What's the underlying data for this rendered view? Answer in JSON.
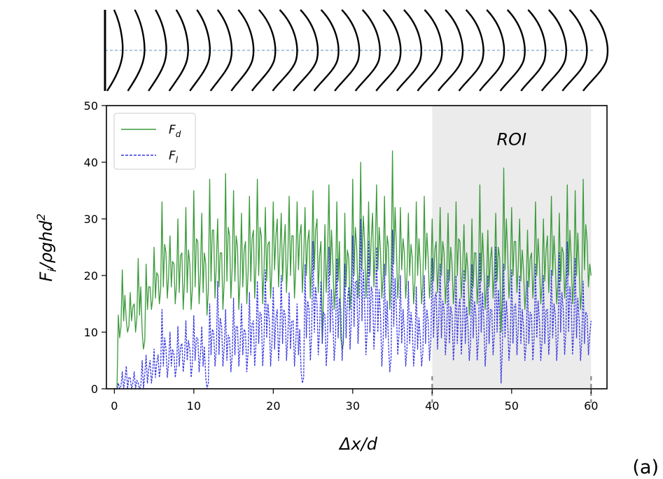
{
  "panel_label": "(a)",
  "top_strip": {
    "profile_count": 24,
    "reference_line_color": "#5b8fc7"
  },
  "chart_data": {
    "type": "line",
    "xlabel_parts": {
      "base": "Δx/d"
    },
    "ylabel_parts": {
      "base": "F",
      "sub": "i",
      "rest": "/ρghd",
      "sup": "2"
    },
    "xlim": [
      -1,
      62
    ],
    "ylim": [
      0,
      50
    ],
    "xticks": [
      0,
      10,
      20,
      30,
      40,
      50,
      60
    ],
    "yticks": [
      0,
      10,
      20,
      30,
      40,
      50
    ],
    "grid": false,
    "legend_placement": "top-left",
    "region": {
      "label": "ROI",
      "x_start": 40,
      "x_end": 60,
      "color": "#ebebeb"
    },
    "series": [
      {
        "name": "F",
        "name_sub": "d",
        "color": "#3a9a3a",
        "style": "solid",
        "x": [
          0,
          0.5,
          1,
          1.5,
          2,
          2.5,
          3,
          3.5,
          4,
          4.5,
          5,
          5.5,
          6,
          6.5,
          7,
          7.5,
          8,
          8.5,
          9,
          9.5,
          10,
          10.5,
          11,
          11.5,
          12,
          12.5,
          13,
          13.5,
          14,
          14.5,
          15,
          15.5,
          16,
          16.5,
          17,
          17.5,
          18,
          18.5,
          19,
          19.5,
          20,
          20.5,
          21,
          21.5,
          22,
          22.5,
          23,
          23.5,
          24,
          24.5,
          25,
          25.5,
          26,
          26.5,
          27,
          27.5,
          28,
          28.5,
          29,
          29.5,
          30,
          30.5,
          31,
          31.5,
          32,
          32.5,
          33,
          33.5,
          34,
          34.5,
          35,
          35.5,
          36,
          36.5,
          37,
          37.5,
          38,
          38.5,
          39,
          39.5,
          40,
          40.5,
          41,
          41.5,
          42,
          42.5,
          43,
          43.5,
          44,
          44.5,
          45,
          45.5,
          46,
          46.5,
          47,
          47.5,
          48,
          48.5,
          49,
          49.5,
          50,
          50.5,
          51,
          51.5,
          52,
          52.5,
          53,
          53.5,
          54,
          54.5,
          55,
          55.5,
          56,
          56.5,
          57,
          57.5,
          58,
          58.5,
          59,
          59.5,
          60
        ],
        "values": [
          0,
          13,
          21,
          12,
          17,
          15,
          23,
          10,
          22,
          18,
          25,
          20,
          33,
          24,
          27,
          22,
          30,
          24,
          32,
          22,
          35,
          26,
          31,
          22,
          37,
          28,
          30,
          24,
          38,
          27,
          35,
          25,
          31,
          26,
          34,
          28,
          37,
          27,
          32,
          26,
          33,
          30,
          31,
          29,
          34,
          27,
          33,
          29,
          32,
          28,
          35,
          30,
          26,
          29,
          36,
          22,
          33,
          9,
          31,
          23,
          37,
          25,
          40,
          26,
          33,
          31,
          36,
          24,
          34,
          25,
          42,
          25,
          32,
          24,
          31,
          23,
          33,
          22,
          34,
          23,
          30,
          26,
          32,
          24,
          31,
          22,
          33,
          26,
          29,
          21,
          30,
          24,
          36,
          22,
          28,
          25,
          31,
          23,
          39,
          24,
          32,
          26,
          30,
          21,
          28,
          24,
          33,
          22,
          30,
          27,
          34,
          22,
          31,
          24,
          36,
          23,
          35,
          21,
          37,
          26,
          20
        ],
        "min_values": [
          0,
          9,
          12,
          10,
          12,
          10,
          13,
          7,
          14,
          14,
          16,
          15,
          18,
          16,
          18,
          15,
          17,
          14,
          17,
          14,
          18,
          15,
          17,
          13,
          19,
          16,
          18,
          14,
          19,
          16,
          19,
          14,
          18,
          15,
          19,
          16,
          20,
          15,
          19,
          16,
          21,
          18,
          19,
          17,
          20,
          16,
          21,
          17,
          20,
          16,
          21,
          17,
          8,
          17,
          20,
          14,
          19,
          7,
          18,
          14,
          20,
          16,
          21,
          16,
          20,
          18,
          21,
          16,
          20,
          14,
          22,
          16,
          21,
          16,
          20,
          15,
          20,
          15,
          21,
          16,
          19,
          17,
          20,
          15,
          19,
          15,
          20,
          16,
          19,
          13,
          18,
          15,
          19,
          14,
          18,
          16,
          19,
          10,
          21,
          16,
          20,
          17,
          19,
          14,
          18,
          16,
          20,
          15,
          19,
          17,
          20,
          15,
          19,
          16,
          20,
          15,
          20,
          14,
          21,
          18,
          20
        ]
      },
      {
        "name": "F",
        "name_sub": "l",
        "color": "#3535e0",
        "style": "dashed",
        "x": [
          0,
          0.5,
          1,
          1.5,
          2,
          2.5,
          3,
          3.5,
          4,
          4.5,
          5,
          5.5,
          6,
          6.5,
          7,
          7.5,
          8,
          8.5,
          9,
          9.5,
          10,
          10.5,
          11,
          11.5,
          12,
          12.5,
          13,
          13.5,
          14,
          14.5,
          15,
          15.5,
          16,
          16.5,
          17,
          17.5,
          18,
          18.5,
          19,
          19.5,
          20,
          20.5,
          21,
          21.5,
          22,
          22.5,
          23,
          23.5,
          24,
          24.5,
          25,
          25.5,
          26,
          26.5,
          27,
          27.5,
          28,
          28.5,
          29,
          29.5,
          30,
          30.5,
          31,
          31.5,
          32,
          32.5,
          33,
          33.5,
          34,
          34.5,
          35,
          35.5,
          36,
          36.5,
          37,
          37.5,
          38,
          38.5,
          39,
          39.5,
          40,
          40.5,
          41,
          41.5,
          42,
          42.5,
          43,
          43.5,
          44,
          44.5,
          45,
          45.5,
          46,
          46.5,
          47,
          47.5,
          48,
          48.5,
          49,
          49.5,
          50,
          50.5,
          51,
          51.5,
          52,
          52.5,
          53,
          53.5,
          54,
          54.5,
          55,
          55.5,
          56,
          56.5,
          57,
          57.5,
          58,
          58.5,
          59,
          59.5,
          60
        ],
        "values": [
          0,
          1,
          3,
          4,
          2,
          3,
          1,
          5,
          6,
          5,
          7,
          6,
          14,
          7,
          10,
          6,
          11,
          8,
          12,
          7,
          13,
          9,
          11,
          2,
          15,
          10,
          19,
          11,
          14,
          9,
          16,
          11,
          15,
          10,
          17,
          12,
          19,
          13,
          21,
          12,
          18,
          14,
          20,
          13,
          17,
          12,
          15,
          3,
          22,
          14,
          26,
          15,
          19,
          13,
          25,
          12,
          23,
          14,
          22,
          18,
          27,
          19,
          30,
          15,
          26,
          17,
          25,
          13,
          22,
          8,
          28,
          14,
          20,
          10,
          19,
          11,
          18,
          9,
          20,
          12,
          23,
          17,
          22,
          14,
          21,
          13,
          20,
          16,
          21,
          11,
          22,
          13,
          24,
          12,
          20,
          14,
          25,
          13,
          22,
          12,
          21,
          15,
          20,
          11,
          19,
          13,
          22,
          12,
          20,
          14,
          21,
          13,
          24,
          14,
          26,
          15,
          23,
          12,
          19,
          13,
          12
        ],
        "min_values": [
          0,
          0,
          0,
          0,
          0,
          0,
          0,
          0,
          1,
          1,
          2,
          2,
          4,
          2,
          4,
          2,
          4,
          3,
          5,
          2,
          5,
          3,
          4,
          0,
          6,
          4,
          6,
          4,
          5,
          3,
          6,
          4,
          6,
          3,
          6,
          4,
          8,
          4,
          9,
          4,
          7,
          5,
          8,
          5,
          7,
          4,
          6,
          1,
          9,
          5,
          10,
          6,
          8,
          4,
          10,
          5,
          9,
          5,
          9,
          7,
          11,
          8,
          12,
          6,
          10,
          7,
          10,
          4,
          9,
          3,
          11,
          6,
          8,
          4,
          8,
          4,
          7,
          4,
          8,
          5,
          9,
          7,
          9,
          6,
          8,
          5,
          8,
          6,
          8,
          5,
          9,
          5,
          10,
          4,
          8,
          6,
          10,
          1,
          9,
          5,
          8,
          6,
          8,
          5,
          8,
          5,
          9,
          5,
          8,
          6,
          9,
          5,
          10,
          6,
          10,
          6,
          9,
          5,
          8,
          6,
          7
        ]
      }
    ]
  }
}
